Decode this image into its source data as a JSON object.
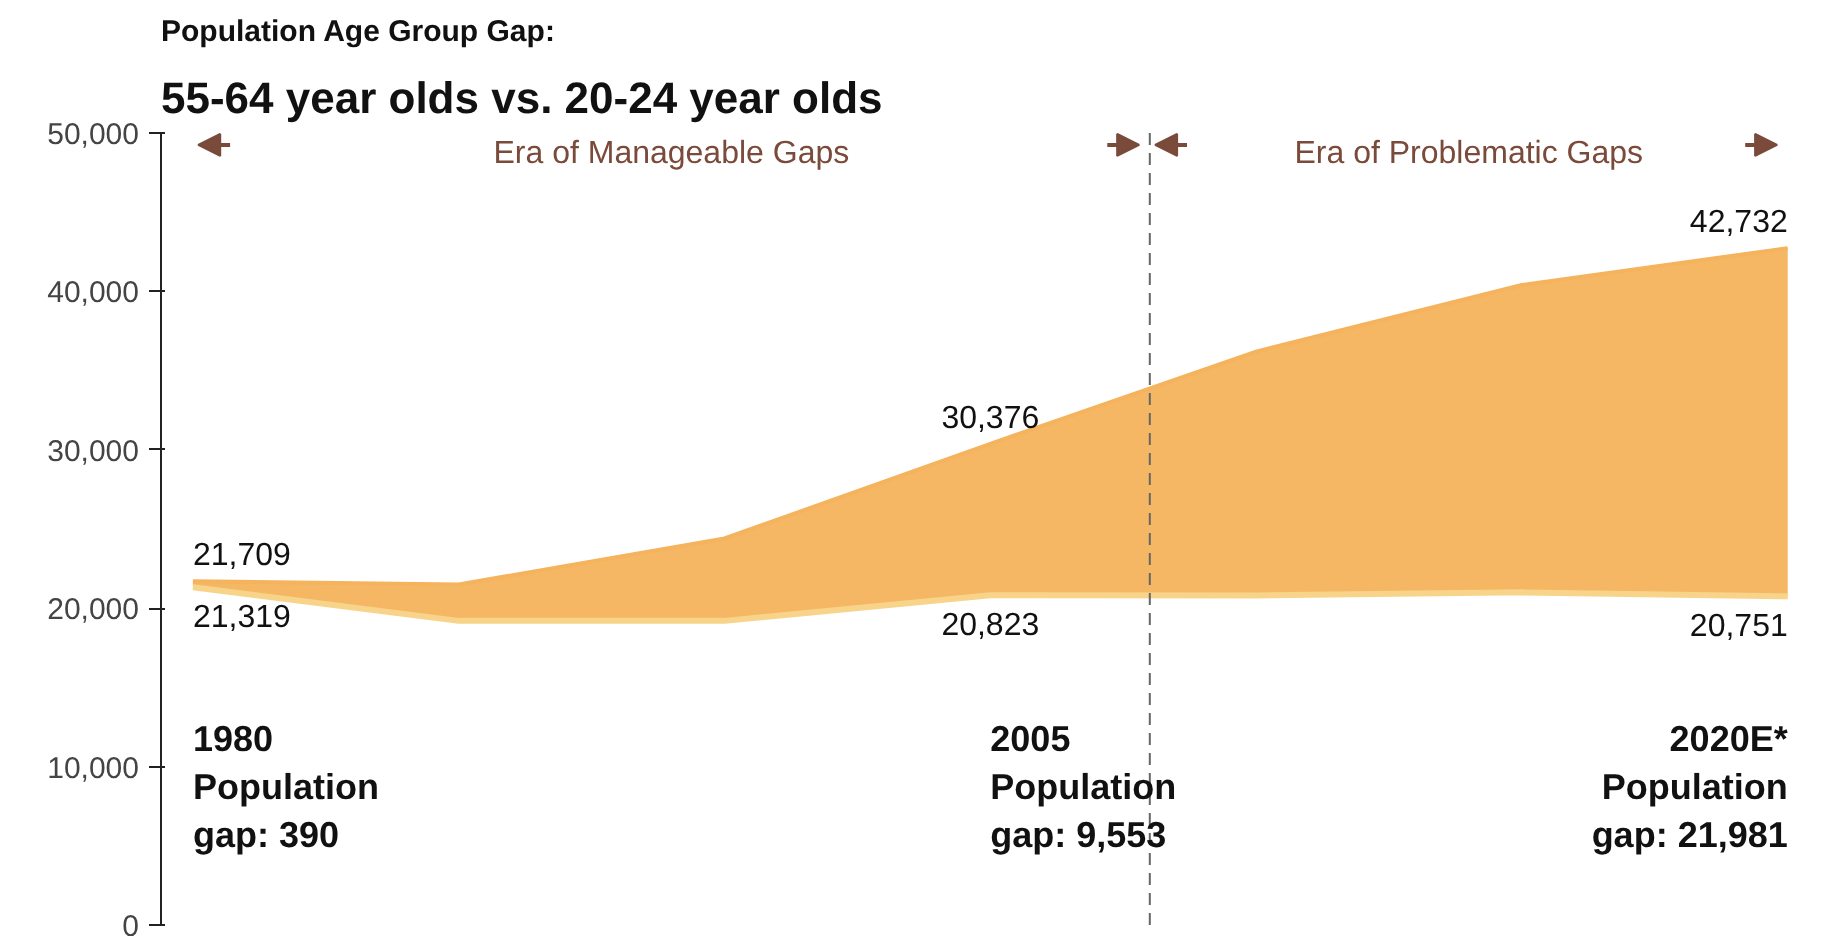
{
  "chart_data": {
    "type": "area",
    "title": "Population Age Group Gap:",
    "subtitle": "55-64 year olds vs. 20-24 year olds",
    "categories": [
      null,
      null,
      null,
      null,
      null,
      null,
      null
    ],
    "ylim": [
      0,
      50000
    ],
    "yticks": [
      {
        "value": 0,
        "label": "0"
      },
      {
        "value": 10000,
        "label": "10,000"
      },
      {
        "value": 20000,
        "label": "20,000"
      },
      {
        "value": 30000,
        "label": "30,000"
      },
      {
        "value": 40000,
        "label": "40,000"
      },
      {
        "value": 50000,
        "label": "50,000"
      }
    ],
    "grid": false,
    "series": [
      {
        "color": "#f4b35c",
        "values": [
          21709,
          21500,
          24400,
          30376,
          36200,
          40400,
          42732
        ],
        "value_labels": [
          "21,709",
          null,
          null,
          "30,376",
          null,
          null,
          "42,732"
        ]
      },
      {
        "type": "line",
        "color": "#f8d48a",
        "values": [
          21319,
          19200,
          19200,
          20823,
          20800,
          21000,
          20751
        ],
        "value_labels": [
          "21,319",
          null,
          null,
          "20,823",
          null,
          null,
          "20,751"
        ]
      }
    ],
    "annotations": [
      "Era of Manageable Gaps",
      "Era of Problematic Gaps",
      "1980\nPopulation\ngap: 390",
      "2005\nPopulation\ngap: 9,553",
      "2020E*\nPopulation\ngap: 21,981"
    ]
  }
}
